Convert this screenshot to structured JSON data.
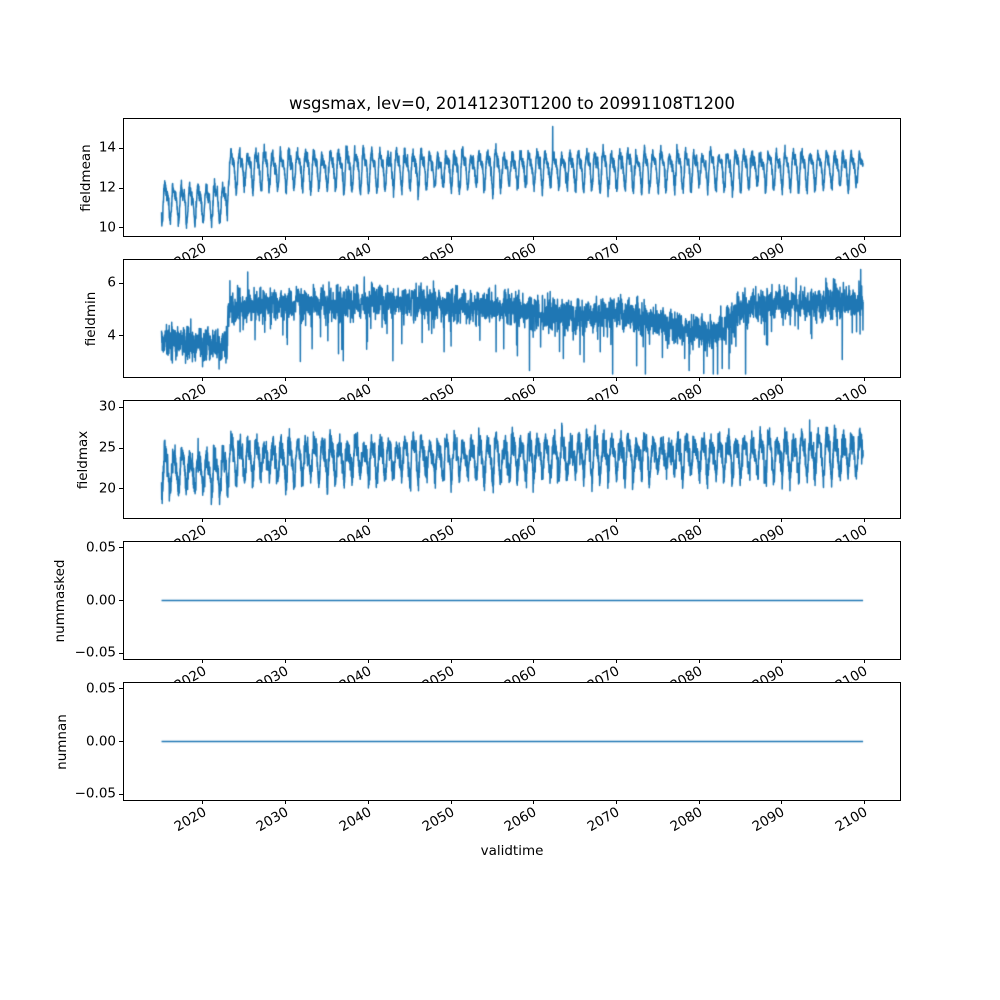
{
  "figure": {
    "title": "wsgsmax, lev=0, 20141230T1200 to 20991108T1200",
    "xlabel": "validtime",
    "background": "#ffffff",
    "line_color": "#1f77b4",
    "text_color": "#000000"
  },
  "axes": {
    "xlim": [
      2010.45,
      2104.3
    ],
    "x_ticks": [
      2020,
      2030,
      2040,
      2050,
      2060,
      2070,
      2080,
      2090,
      2100
    ],
    "x_start": 2014.99,
    "x_end": 2099.85,
    "points_per_year": 52,
    "seed": 7
  },
  "chart_data": [
    {
      "name": "fieldmean",
      "type": "line",
      "ylabel": "fieldmean",
      "yticks": [
        [
          14,
          "14"
        ],
        [
          12,
          "12"
        ],
        [
          10,
          "10"
        ]
      ],
      "ylim": [
        9.58,
        15.48
      ],
      "approx_range": [
        10.0,
        15.1
      ],
      "gen": {
        "kind": "seasonal",
        "base_segments": [
          [
            2014.9,
            11.35
          ],
          [
            2022.95,
            11.3
          ],
          [
            2023.05,
            13.0
          ],
          [
            2100,
            13.0
          ]
        ],
        "season_weights": [
          0.7,
          0.3
        ],
        "season_amp": [
          0.85,
          1.25
        ],
        "noise": 0.16,
        "spikes_up": [
          [
            2062.3,
            15.1
          ]
        ],
        "clamp_min": 9.9,
        "clamp_max": 15.3
      }
    },
    {
      "name": "fieldmin",
      "type": "line",
      "ylabel": "fieldmin",
      "yticks": [
        [
          6,
          "6"
        ],
        [
          4,
          "4"
        ]
      ],
      "ylim": [
        2.44,
        6.88
      ],
      "approx_range": [
        2.6,
        6.6
      ],
      "gen": {
        "kind": "noisy",
        "base_segments": [
          [
            2014.9,
            3.75
          ],
          [
            2022.95,
            3.6
          ],
          [
            2023.05,
            5.05
          ],
          [
            2030,
            5.2
          ],
          [
            2045,
            5.25
          ],
          [
            2052,
            5.1
          ],
          [
            2058,
            5.0
          ],
          [
            2065,
            4.7
          ],
          [
            2071,
            4.85
          ],
          [
            2077,
            4.35
          ],
          [
            2081,
            4.05
          ],
          [
            2083,
            4.3
          ],
          [
            2085,
            5.05
          ],
          [
            2090,
            5.2
          ],
          [
            2100,
            5.3
          ]
        ],
        "season_amp": 0.12,
        "noise": 0.3,
        "down_spike_prob": 0.022,
        "down_spike": [
          0.6,
          1.4
        ],
        "clamp_min": 2.55,
        "clamp_max": 6.6
      }
    },
    {
      "name": "fieldmax",
      "type": "line",
      "ylabel": "fieldmax",
      "yticks": [
        [
          30,
          "30"
        ],
        [
          25,
          "25"
        ],
        [
          20,
          "20"
        ]
      ],
      "ylim": [
        16.44,
        30.76
      ],
      "approx_range": [
        17.3,
        30.1
      ],
      "gen": {
        "kind": "seasonal",
        "base_segments": [
          [
            2014.9,
            22.3
          ],
          [
            2022.95,
            22.2
          ],
          [
            2023.05,
            23.6
          ],
          [
            2060,
            23.9
          ],
          [
            2100,
            24.3
          ]
        ],
        "season_weights": [
          0.85,
          0.25
        ],
        "season_amp": [
          1.6,
          3.1
        ],
        "noise": 0.75,
        "spikes_up": [],
        "clamp_min": 17.2,
        "clamp_max": 30.1
      }
    },
    {
      "name": "nummasked",
      "type": "line",
      "ylabel": "nummasked",
      "yticks": [
        [
          0.05,
          "0.05"
        ],
        [
          0,
          "0.00"
        ],
        [
          -0.05,
          "−0.05"
        ]
      ],
      "ylim": [
        -0.0552,
        0.0552
      ],
      "approx_range": [
        0,
        0
      ],
      "gen": {
        "kind": "constant",
        "value": 0
      }
    },
    {
      "name": "numnan",
      "type": "line",
      "ylabel": "numnan",
      "yticks": [
        [
          0.05,
          "0.05"
        ],
        [
          0,
          "0.00"
        ],
        [
          -0.05,
          "−0.05"
        ]
      ],
      "ylim": [
        -0.0552,
        0.0552
      ],
      "approx_range": [
        0,
        0
      ],
      "gen": {
        "kind": "constant",
        "value": 0
      }
    }
  ]
}
